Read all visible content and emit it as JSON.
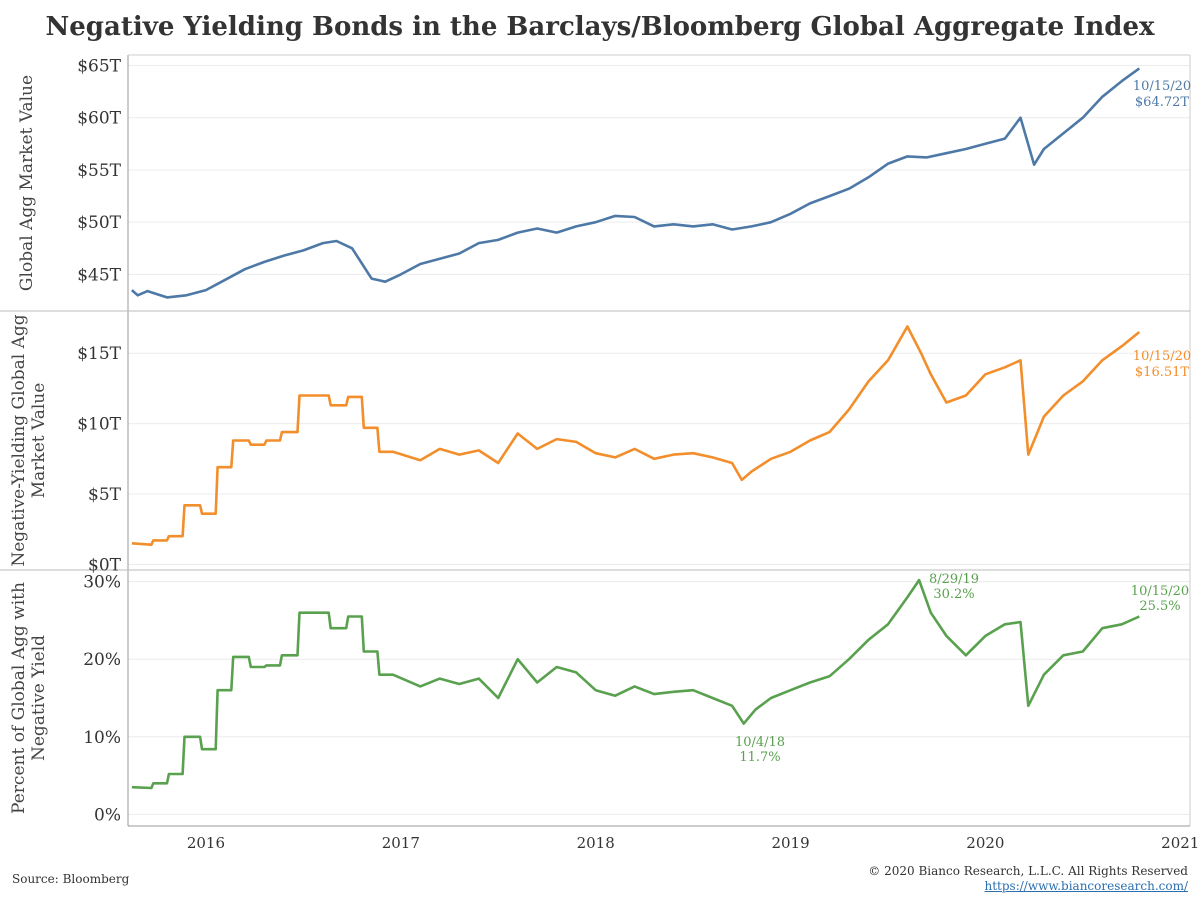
{
  "title": "Negative Yielding Bonds in the Barclays/Bloomberg Global Aggregate Index",
  "footer": {
    "source": "Source: Bloomberg",
    "copyright": "© 2020 Bianco Research, L.L.C. All Rights Reserved",
    "url": "https://www.biancoresearch.com/"
  },
  "colors": {
    "panel1": "#4e79a7",
    "panel2": "#f28e2b",
    "panel3": "#59a14f"
  },
  "chart_data": [
    {
      "type": "line",
      "ylabel": "Global Agg Market Value",
      "ylim": [
        41.5,
        66
      ],
      "yticks": [
        45,
        50,
        55,
        60,
        65
      ],
      "ytick_labels": [
        "$45T",
        "$50T",
        "$55T",
        "$60T",
        "$65T"
      ],
      "xlim": [
        2015.6,
        2021.05
      ],
      "xticks": [
        2016,
        2017,
        2018,
        2019,
        2020,
        2021
      ],
      "xtick_labels": [
        "2016",
        "2017",
        "2018",
        "2019",
        "2020",
        "2021"
      ],
      "series": [
        {
          "x": [
            2015.62,
            2015.65,
            2015.7,
            2015.8,
            2015.9,
            2016.0,
            2016.1,
            2016.2,
            2016.3,
            2016.4,
            2016.5,
            2016.6,
            2016.67,
            2016.75,
            2016.85,
            2016.92,
            2017.0,
            2017.1,
            2017.2,
            2017.3,
            2017.4,
            2017.5,
            2017.6,
            2017.7,
            2017.8,
            2017.9,
            2018.0,
            2018.1,
            2018.2,
            2018.3,
            2018.4,
            2018.5,
            2018.6,
            2018.7,
            2018.8,
            2018.9,
            2019.0,
            2019.1,
            2019.2,
            2019.3,
            2019.4,
            2019.5,
            2019.6,
            2019.7,
            2019.8,
            2019.9,
            2020.0,
            2020.1,
            2020.18,
            2020.25,
            2020.3,
            2020.4,
            2020.5,
            2020.6,
            2020.7,
            2020.79
          ],
          "values": [
            43.5,
            43.0,
            43.4,
            42.8,
            43.0,
            43.5,
            44.5,
            45.5,
            46.2,
            46.8,
            47.3,
            48.0,
            48.2,
            47.5,
            44.6,
            44.3,
            45.0,
            46.0,
            46.5,
            47.0,
            48.0,
            48.3,
            49.0,
            49.4,
            49.0,
            49.6,
            50.0,
            50.6,
            50.5,
            49.6,
            49.8,
            49.6,
            49.8,
            49.3,
            49.6,
            50.0,
            50.8,
            51.8,
            52.5,
            53.2,
            54.3,
            55.6,
            56.3,
            56.2,
            56.6,
            57.0,
            57.5,
            58.0,
            60.0,
            55.5,
            57.0,
            58.5,
            60.0,
            62.0,
            63.5,
            64.72
          ]
        }
      ],
      "annotations": [
        {
          "date": "10/15/20",
          "value": "$64.72T"
        }
      ]
    },
    {
      "type": "line",
      "ylabel": "Negative-Yielding Global Agg Market Value",
      "ylim": [
        -0.4,
        18
      ],
      "yticks": [
        0,
        5,
        10,
        15
      ],
      "ytick_labels": [
        "$0T",
        "$5T",
        "$10T",
        "$15T"
      ],
      "xlim": [
        2015.6,
        2021.05
      ],
      "series": [
        {
          "x": [
            2015.62,
            2015.72,
            2015.73,
            2015.8,
            2015.81,
            2015.88,
            2015.89,
            2015.97,
            2015.98,
            2016.05,
            2016.06,
            2016.13,
            2016.14,
            2016.22,
            2016.23,
            2016.3,
            2016.31,
            2016.38,
            2016.39,
            2016.47,
            2016.48,
            2016.63,
            2016.64,
            2016.72,
            2016.73,
            2016.8,
            2016.81,
            2016.88,
            2016.89,
            2016.96,
            2017.1,
            2017.2,
            2017.3,
            2017.4,
            2017.5,
            2017.6,
            2017.7,
            2017.8,
            2017.9,
            2018.0,
            2018.1,
            2018.2,
            2018.3,
            2018.4,
            2018.5,
            2018.6,
            2018.7,
            2018.75,
            2018.8,
            2018.9,
            2019.0,
            2019.1,
            2019.2,
            2019.3,
            2019.4,
            2019.5,
            2019.6,
            2019.67,
            2019.72,
            2019.8,
            2019.9,
            2020.0,
            2020.1,
            2020.18,
            2020.22,
            2020.3,
            2020.4,
            2020.5,
            2020.6,
            2020.7,
            2020.79
          ],
          "values": [
            1.5,
            1.4,
            1.7,
            1.7,
            2.0,
            2.0,
            4.2,
            4.2,
            3.6,
            3.6,
            6.9,
            6.9,
            8.8,
            8.8,
            8.5,
            8.5,
            8.8,
            8.8,
            9.4,
            9.4,
            12.0,
            12.0,
            11.3,
            11.3,
            11.9,
            11.9,
            9.7,
            9.7,
            8.0,
            8.0,
            7.4,
            8.2,
            7.8,
            8.1,
            7.2,
            9.3,
            8.2,
            8.9,
            8.7,
            7.9,
            7.6,
            8.2,
            7.5,
            7.8,
            7.9,
            7.6,
            7.2,
            6.0,
            6.6,
            7.5,
            8.0,
            8.8,
            9.4,
            11.0,
            13.0,
            14.5,
            16.9,
            15.0,
            13.5,
            11.5,
            12.0,
            13.5,
            14.0,
            14.5,
            7.8,
            10.5,
            12.0,
            13.0,
            14.5,
            15.5,
            16.51
          ]
        }
      ],
      "annotations": [
        {
          "date": "10/15/20",
          "value": "$16.51T"
        }
      ]
    },
    {
      "type": "line",
      "ylabel": "Percent of Global Agg with Negative Yield",
      "ylim": [
        -1.5,
        31.5
      ],
      "yticks": [
        0,
        10,
        20,
        30
      ],
      "ytick_labels": [
        "0%",
        "10%",
        "20%",
        "30%"
      ],
      "xlim": [
        2015.6,
        2021.05
      ],
      "series": [
        {
          "x": [
            2015.62,
            2015.72,
            2015.73,
            2015.8,
            2015.81,
            2015.88,
            2015.89,
            2015.97,
            2015.98,
            2016.05,
            2016.06,
            2016.13,
            2016.14,
            2016.22,
            2016.23,
            2016.3,
            2016.31,
            2016.38,
            2016.39,
            2016.47,
            2016.48,
            2016.63,
            2016.64,
            2016.72,
            2016.73,
            2016.8,
            2016.81,
            2016.88,
            2016.89,
            2016.96,
            2017.1,
            2017.2,
            2017.3,
            2017.4,
            2017.5,
            2017.6,
            2017.7,
            2017.8,
            2017.9,
            2018.0,
            2018.1,
            2018.2,
            2018.3,
            2018.4,
            2018.5,
            2018.6,
            2018.7,
            2018.76,
            2018.82,
            2018.9,
            2019.0,
            2019.1,
            2019.2,
            2019.3,
            2019.4,
            2019.5,
            2019.6,
            2019.66,
            2019.72,
            2019.8,
            2019.9,
            2020.0,
            2020.1,
            2020.18,
            2020.22,
            2020.3,
            2020.4,
            2020.5,
            2020.6,
            2020.7,
            2020.79
          ],
          "values": [
            3.5,
            3.4,
            4.0,
            4.0,
            5.2,
            5.2,
            10.0,
            10.0,
            8.4,
            8.4,
            16.0,
            16.0,
            20.3,
            20.3,
            19.0,
            19.0,
            19.2,
            19.2,
            20.5,
            20.5,
            26.0,
            26.0,
            24.0,
            24.0,
            25.5,
            25.5,
            21.0,
            21.0,
            18.0,
            18.0,
            16.5,
            17.5,
            16.8,
            17.5,
            15.0,
            20.0,
            17.0,
            19.0,
            18.3,
            16.0,
            15.3,
            16.5,
            15.5,
            15.8,
            16.0,
            15.0,
            14.0,
            11.7,
            13.5,
            15.0,
            16.0,
            17.0,
            17.8,
            20.0,
            22.5,
            24.5,
            28.0,
            30.2,
            26.0,
            23.0,
            20.5,
            23.0,
            24.5,
            24.8,
            14.0,
            18.0,
            20.5,
            21.0,
            24.0,
            24.5,
            25.5
          ]
        }
      ],
      "annotations": [
        {
          "date": "8/29/19",
          "value": "30.2%"
        },
        {
          "date": "10/4/18",
          "value": "11.7%"
        },
        {
          "date": "10/15/20",
          "value": "25.5%"
        }
      ]
    }
  ]
}
